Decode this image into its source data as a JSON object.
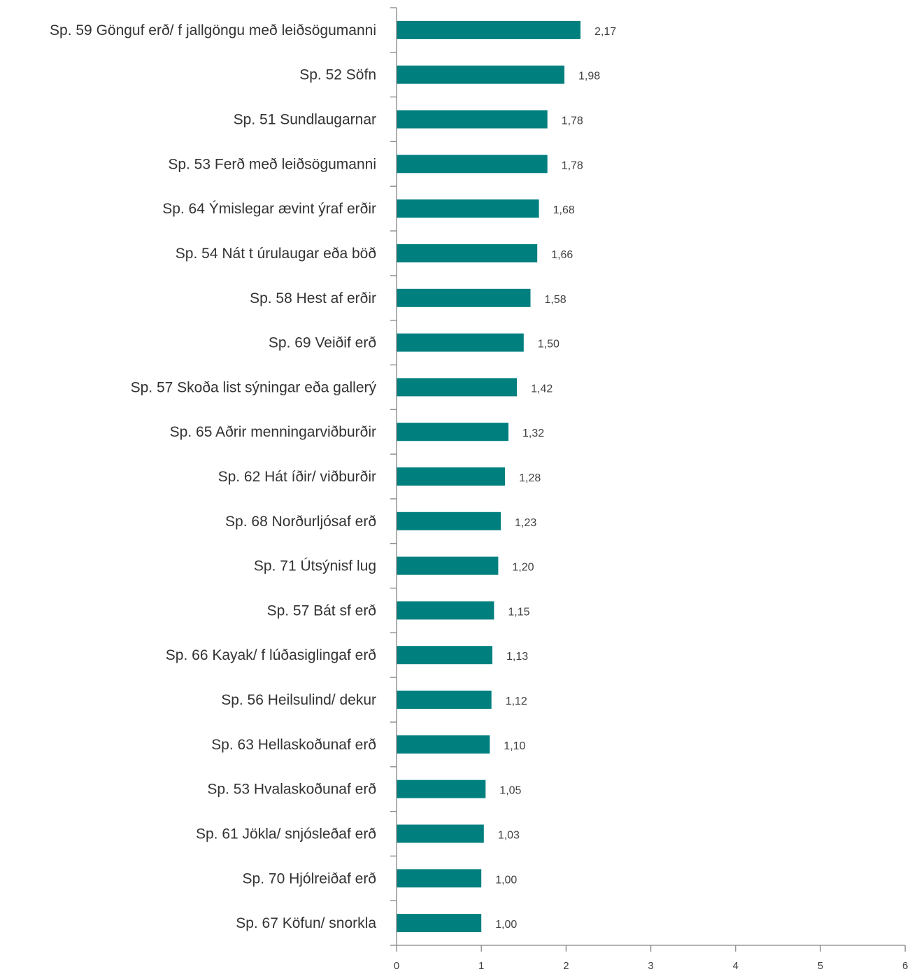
{
  "chart_data": {
    "type": "bar",
    "orientation": "horizontal",
    "categories": [
      "Sp. 59 Gönguf erð/ f jallgöngu með leiðsögumanni",
      "Sp. 52 Söfn",
      "Sp. 51 Sundlaugarnar",
      "Sp. 53 Ferð með leiðsögumanni",
      "Sp. 64 Ýmislegar ævint ýraf erðir",
      "Sp. 54 Nát t úrulaugar eða böð",
      "Sp. 58 Hest af erðir",
      "Sp. 69 Veiðif erð",
      "Sp. 57 Skoða list sýningar eða gallerý",
      "Sp. 65 Aðrir menningarviðburðir",
      "Sp. 62 Hát íðir/ viðburðir",
      "Sp. 68 Norðurljósaf erð",
      "Sp. 71 Útsýnisf lug",
      "Sp. 57 Bát sf erð",
      "Sp. 66 Kayak/ f lúðasiglingaf erð",
      "Sp. 56 Heilsulind/ dekur",
      "Sp. 63 Hellaskoðunaf erð",
      "Sp. 53 Hvalaskoðunaf erð",
      "Sp. 61 Jökla/ snjósleðaf erð",
      "Sp. 70 Hjólreiðaf erð",
      "Sp. 67 Köfun/ snorkla"
    ],
    "values": [
      2.17,
      1.98,
      1.78,
      1.78,
      1.68,
      1.66,
      1.58,
      1.5,
      1.42,
      1.32,
      1.28,
      1.23,
      1.2,
      1.15,
      1.13,
      1.12,
      1.1,
      1.05,
      1.03,
      1.0,
      1.0
    ],
    "value_labels": [
      "2,17",
      "1,98",
      "1,78",
      "1,78",
      "1,68",
      "1,66",
      "1,58",
      "1,50",
      "1,42",
      "1,32",
      "1,28",
      "1,23",
      "1,20",
      "1,15",
      "1,13",
      "1,12",
      "1,10",
      "1,05",
      "1,03",
      "1,00",
      "1,00"
    ],
    "xlim": [
      0,
      6
    ],
    "xticks": [
      "0",
      "1",
      "2",
      "3",
      "4",
      "5",
      "6"
    ],
    "grid": false,
    "legend": "none",
    "bar_color": "#007F7F",
    "axis_color": "#868686",
    "title": "",
    "xlabel": "",
    "ylabel": ""
  }
}
